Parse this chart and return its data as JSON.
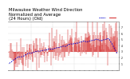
{
  "title": "Milwaukee Weather Wind Direction\nNormalized and Average\n(24 Hours) (Old)",
  "n_points": 288,
  "y_ticks": [
    1,
    2,
    3,
    4,
    5,
    6,
    7
  ],
  "y_tick_labels": [
    "",
    "",
    "",
    "",
    "",
    "",
    ""
  ],
  "ylim": [
    0.0,
    8.0
  ],
  "xlim": [
    -3,
    291
  ],
  "bar_color": "#cc0000",
  "avg_color": "#0000cc",
  "background_color": "#ffffff",
  "grid_color": "#aaaaaa",
  "title_fontsize": 3.8,
  "seed": 42,
  "trend_start": 2.2,
  "trend_end": 5.5,
  "noise_scale": 1.4,
  "baseline": 3.0,
  "avg_window": 48
}
